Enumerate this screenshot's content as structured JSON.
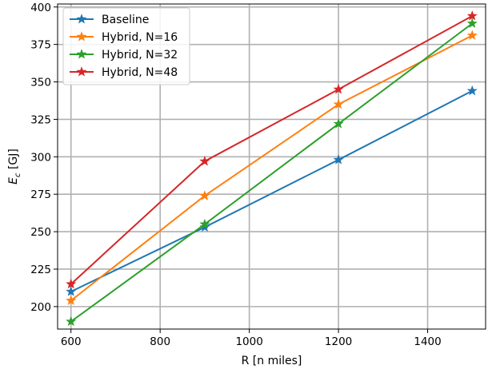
{
  "chart_data": {
    "type": "line",
    "title": "",
    "xlabel": "R [n miles]",
    "ylabel_main": "E",
    "ylabel_sub": "c",
    "ylabel_unit": " [GJ]",
    "xlim": [
      570,
      1530
    ],
    "ylim": [
      185,
      402
    ],
    "xticks": [
      600,
      800,
      1000,
      1200,
      1400
    ],
    "yticks": [
      200,
      225,
      250,
      275,
      300,
      325,
      350,
      375,
      400
    ],
    "grid": true,
    "legend_position": "top-left",
    "x": [
      600,
      900,
      1200,
      1500
    ],
    "series": [
      {
        "name": "Baseline",
        "color": "#1f77b4",
        "marker": "star",
        "values": [
          210,
          253,
          298,
          344
        ]
      },
      {
        "name": "Hybrid, N=16",
        "color": "#ff7f0e",
        "marker": "star",
        "values": [
          204,
          274,
          335,
          381
        ]
      },
      {
        "name": "Hybrid, N=32",
        "color": "#2ca02c",
        "marker": "star",
        "values": [
          190,
          255,
          322,
          389
        ]
      },
      {
        "name": "Hybrid, N=48",
        "color": "#d62728",
        "marker": "star",
        "values": [
          215,
          297,
          345,
          394
        ]
      }
    ]
  }
}
